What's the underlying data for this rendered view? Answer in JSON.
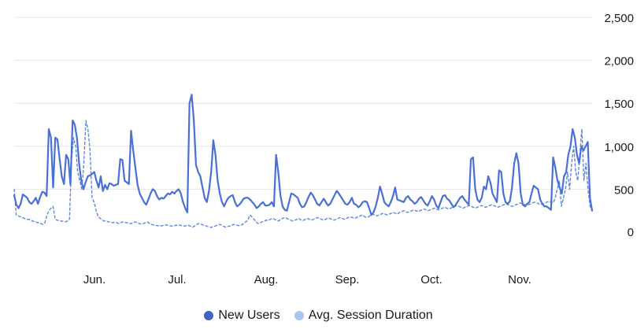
{
  "chart_data": {
    "type": "line",
    "title": "",
    "xlabel": "",
    "ylabel": "",
    "ylim": [
      0,
      2500
    ],
    "yticks": [
      0,
      500,
      1000,
      1500,
      2000,
      2500
    ],
    "ytick_labels": [
      "0",
      "500",
      "1,000",
      "1,500",
      "2,000",
      "2,500"
    ],
    "x_tick_labels": [
      "Jun.",
      "Jul.",
      "Aug.",
      "Sep.",
      "Oct.",
      "Nov."
    ],
    "grid": true,
    "legend_position": "bottom-center",
    "colors": {
      "new_users": "#4a6fd6",
      "avg_session": "#5f86e0",
      "legend_new_users": "#3f63c4",
      "legend_avg_session": "#a9c6ef",
      "grid": "#e6e6e6"
    },
    "series": [
      {
        "name": "New Users",
        "style": "solid",
        "values": [
          430,
          320,
          280,
          330,
          440,
          420,
          400,
          350,
          330,
          360,
          400,
          330,
          410,
          470,
          460,
          420,
          1200,
          1100,
          520,
          1100,
          1080,
          850,
          650,
          560,
          900,
          850,
          550,
          1300,
          1250,
          1100,
          800,
          600,
          500,
          580,
          650,
          660,
          680,
          700,
          600,
          520,
          650,
          480,
          550,
          500,
          570,
          560,
          540,
          550,
          560,
          850,
          840,
          600,
          580,
          560,
          1180,
          950,
          750,
          550,
          450,
          400,
          350,
          320,
          380,
          450,
          500,
          480,
          420,
          380,
          400,
          390,
          420,
          450,
          440,
          470,
          450,
          480,
          500,
          450,
          350,
          280,
          230,
          1500,
          1600,
          1300,
          780,
          700,
          650,
          520,
          400,
          350,
          480,
          700,
          1070,
          900,
          600,
          450,
          350,
          300,
          360,
          400,
          420,
          430,
          350,
          300,
          320,
          350,
          390,
          400,
          400,
          380,
          350,
          320,
          280,
          300,
          330,
          350,
          310,
          310,
          320,
          350,
          300,
          900,
          700,
          430,
          300,
          260,
          250,
          350,
          450,
          440,
          420,
          400,
          330,
          290,
          300,
          350,
          410,
          460,
          430,
          380,
          330,
          310,
          350,
          390,
          350,
          310,
          330,
          380,
          430,
          480,
          450,
          410,
          370,
          330,
          320,
          350,
          400,
          330,
          320,
          290,
          310,
          350,
          360,
          350,
          280,
          200,
          230,
          300,
          400,
          530,
          450,
          350,
          320,
          300,
          350,
          420,
          520,
          380,
          370,
          360,
          350,
          400,
          420,
          380,
          360,
          330,
          350,
          390,
          410,
          370,
          330,
          310,
          360,
          420,
          380,
          310,
          280,
          350,
          420,
          430,
          390,
          370,
          330,
          290,
          320,
          360,
          400,
          420,
          380,
          350,
          320,
          850,
          870,
          500,
          380,
          350,
          400,
          530,
          500,
          650,
          580,
          450,
          400,
          350,
          720,
          700,
          450,
          350,
          330,
          360,
          520,
          800,
          920,
          800,
          450,
          320,
          300,
          330,
          350,
          450,
          540,
          520,
          500,
          380,
          330,
          300,
          300,
          280,
          260,
          870,
          750,
          600,
          520,
          450,
          650,
          700,
          900,
          1000,
          1200,
          1100,
          900,
          800,
          1000,
          950,
          1000,
          1050,
          400,
          250
        ]
      },
      {
        "name": "Avg. Session Duration",
        "style": "dashed",
        "values": [
          500,
          200,
          190,
          180,
          170,
          160,
          150,
          150,
          140,
          130,
          120,
          115,
          110,
          100,
          90,
          110,
          200,
          250,
          280,
          300,
          150,
          140,
          135,
          130,
          125,
          120,
          130,
          150,
          850,
          1100,
          1000,
          700,
          600,
          500,
          800,
          1300,
          1200,
          950,
          400,
          350,
          250,
          180,
          160,
          140,
          130,
          130,
          120,
          120,
          110,
          115,
          110,
          100,
          110,
          120,
          115,
          110,
          100,
          100,
          110,
          120,
          110,
          100,
          95,
          100,
          110,
          120,
          100,
          90,
          85,
          80,
          75,
          70,
          75,
          80,
          85,
          80,
          75,
          70,
          75,
          80,
          85,
          80,
          75,
          70,
          75,
          80,
          70,
          60,
          70,
          90,
          100,
          95,
          85,
          80,
          70,
          60,
          55,
          65,
          70,
          80,
          90,
          85,
          70,
          60,
          65,
          70,
          80,
          90,
          85,
          80,
          75,
          85,
          100,
          120,
          140,
          200,
          180,
          150,
          120,
          100,
          110,
          120,
          130,
          140,
          135,
          150,
          160,
          150,
          140,
          130,
          150,
          160,
          170,
          160,
          150,
          140,
          130,
          140,
          150,
          160,
          140,
          135,
          150,
          160,
          150,
          140,
          150,
          160,
          170,
          160,
          150,
          140,
          150,
          165,
          160,
          150,
          140,
          150,
          160,
          170,
          160,
          150,
          160,
          170,
          180,
          170,
          160,
          170,
          180,
          190,
          200,
          180,
          170,
          180,
          200,
          210,
          200,
          190,
          200,
          210,
          220,
          210,
          200,
          210,
          220,
          230,
          220,
          210,
          230,
          240,
          250,
          240,
          230,
          240,
          250,
          260,
          250,
          240,
          250,
          260,
          270,
          260,
          250,
          260,
          270,
          280,
          270,
          260,
          270,
          280,
          290,
          280,
          270,
          280,
          290,
          300,
          310,
          300,
          290,
          280,
          290,
          300,
          310,
          300,
          290,
          280,
          290,
          300,
          310,
          300,
          290,
          300,
          310,
          320,
          310,
          300,
          290,
          300,
          310,
          320,
          330,
          320,
          310,
          300,
          310,
          320,
          330,
          340,
          330,
          320,
          310,
          320,
          330,
          340,
          350,
          340,
          330,
          320,
          330,
          340,
          350,
          360,
          350,
          340,
          400,
          500,
          600,
          300,
          400,
          500,
          700,
          500,
          800,
          1000,
          700,
          600,
          900,
          1200,
          600,
          800,
          500,
          300,
          250
        ]
      }
    ]
  },
  "legend": {
    "items": [
      {
        "label": "New Users"
      },
      {
        "label": "Avg. Session Duration"
      }
    ]
  }
}
